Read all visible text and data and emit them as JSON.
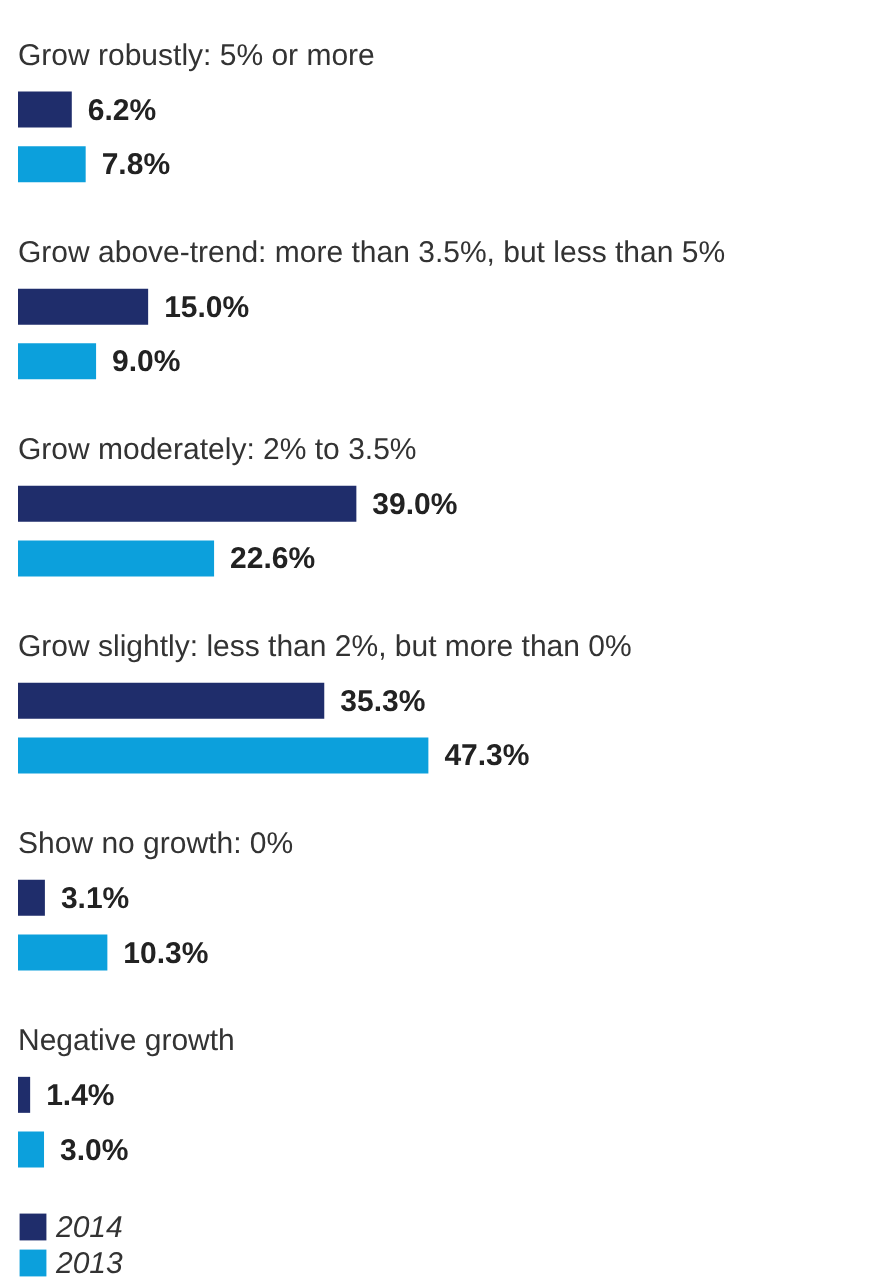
{
  "chart_data": {
    "type": "bar",
    "orientation": "horizontal",
    "categories": [
      "Grow robustly: 5% or more",
      "Grow above-trend: more than 3.5%, but less than 5%",
      "Grow moderately: 2% to 3.5%",
      "Grow slightly: less than 2%, but more than 0%",
      "Show no growth: 0%",
      "Negative growth"
    ],
    "series": [
      {
        "name": "2014",
        "color": "#1f2d6b",
        "values": [
          6.2,
          15.0,
          39.0,
          35.3,
          3.1,
          1.4
        ],
        "value_labels": [
          "6.2%",
          "15.0%",
          "39.0%",
          "35.3%",
          "3.1%",
          "1.4%"
        ]
      },
      {
        "name": "2013",
        "color": "#0ca0dc",
        "values": [
          7.8,
          9.0,
          22.6,
          47.3,
          10.3,
          3.0
        ],
        "value_labels": [
          "7.8%",
          "9.0%",
          "22.6%",
          "47.3%",
          "10.3%",
          "3.0%"
        ]
      }
    ],
    "legend": "bottom left",
    "grid": false
  }
}
